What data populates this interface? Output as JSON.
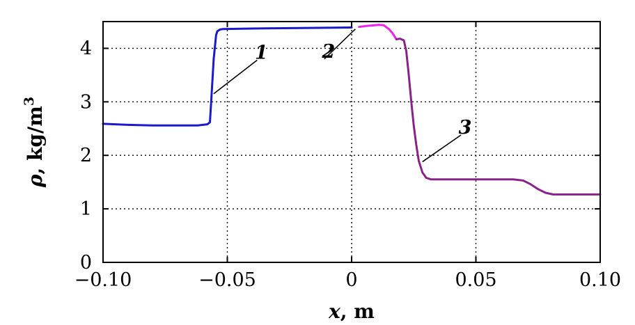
{
  "chart_data": {
    "type": "line",
    "xlabel_symbol": "x",
    "xlabel_unit": ", m",
    "ylabel_symbol": "ρ",
    "ylabel_unit": ", kg/m",
    "ylabel_exp": "3",
    "xlim": [
      -0.1,
      0.1
    ],
    "ylim": [
      0,
      4.5
    ],
    "xticks": [
      -0.1,
      -0.05,
      0,
      0.05,
      0.1
    ],
    "xtick_labels": [
      "−0.10",
      "−0.05",
      "0",
      "0.05",
      "0.10"
    ],
    "yticks": [
      0,
      1,
      2,
      3,
      4
    ],
    "ytick_labels": [
      "0",
      "1",
      "2",
      "3",
      "4"
    ],
    "grid": true,
    "series": [
      {
        "name": "1",
        "color": "#1a1acc",
        "x": [
          -0.1,
          -0.09,
          -0.08,
          -0.07,
          -0.062,
          -0.058,
          -0.057,
          -0.0565,
          -0.0555,
          -0.0545,
          -0.054,
          -0.053,
          -0.052,
          -0.04,
          -0.02,
          0
        ],
        "y": [
          2.59,
          2.57,
          2.56,
          2.56,
          2.56,
          2.58,
          2.62,
          3.0,
          3.8,
          4.25,
          4.32,
          4.35,
          4.36,
          4.37,
          4.38,
          4.39
        ]
      },
      {
        "name": "2",
        "color": "#ee22ee",
        "x": [
          0.003,
          0.006,
          0.009,
          0.011,
          0.013,
          0.015,
          0.0165,
          0.018
        ],
        "y": [
          4.4,
          4.42,
          4.43,
          4.44,
          4.43,
          4.36,
          4.28,
          4.17
        ]
      },
      {
        "name": "3",
        "color": "#882288",
        "x": [
          0.018,
          0.0195,
          0.021,
          0.022,
          0.023,
          0.024,
          0.025,
          0.026,
          0.027,
          0.0285,
          0.03,
          0.032,
          0.035,
          0.045,
          0.055,
          0.065,
          0.069,
          0.072,
          0.075,
          0.078,
          0.081,
          0.085,
          0.09,
          0.1
        ],
        "y": [
          4.17,
          4.18,
          4.15,
          3.95,
          3.5,
          3.0,
          2.55,
          2.2,
          1.9,
          1.68,
          1.58,
          1.55,
          1.55,
          1.55,
          1.55,
          1.55,
          1.53,
          1.46,
          1.37,
          1.3,
          1.27,
          1.27,
          1.27,
          1.27
        ]
      }
    ],
    "annotations": [
      {
        "text": "1",
        "series": "1",
        "tip": [
          -0.0555,
          3.15
        ],
        "label": [
          -0.038,
          3.78
        ]
      },
      {
        "text": "2",
        "series": "2",
        "tip": [
          0.0015,
          4.36
        ],
        "label": [
          -0.011,
          3.8
        ]
      },
      {
        "text": "3",
        "series": "3",
        "tip": [
          0.0285,
          1.88
        ],
        "label": [
          0.044,
          2.38
        ]
      }
    ]
  }
}
